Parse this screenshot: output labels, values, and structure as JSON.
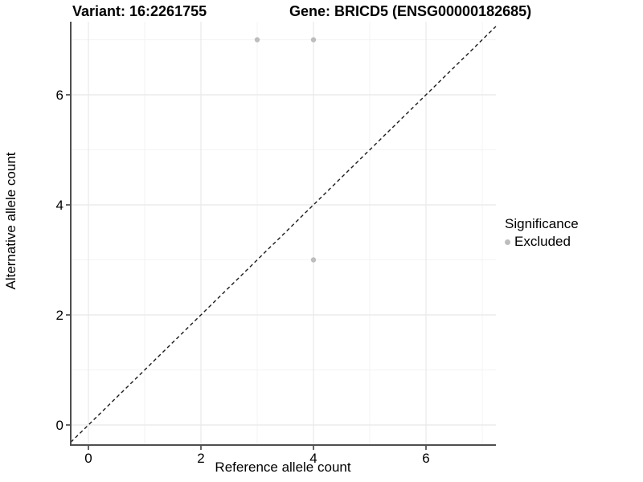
{
  "titles": {
    "variant": "Variant: 16:2261755",
    "gene": "Gene: BRICD5 (ENSG00000182685)"
  },
  "legend": {
    "title": "Significance",
    "items": [
      {
        "label": "Excluded",
        "color": "#bdbdbd"
      }
    ]
  },
  "chart_data": {
    "type": "scatter",
    "title": "Variant: 16:2261755 / Gene: BRICD5 (ENSG00000182685)",
    "xlabel": "Reference allele count",
    "ylabel": "Alternative allele count",
    "series": [
      {
        "name": "Excluded",
        "color": "#bdbdbd",
        "points": [
          {
            "x": 3,
            "y": 7
          },
          {
            "x": 4,
            "y": 7
          },
          {
            "x": 4,
            "y": 3
          }
        ]
      }
    ],
    "reference_line": {
      "type": "identity",
      "slope": 1,
      "intercept": 0,
      "style": "dashed",
      "color": "#1a1a1a"
    },
    "xlim": [
      -0.35,
      7.25
    ],
    "ylim": [
      -0.4,
      7.35
    ],
    "xticks": [
      0,
      2,
      4,
      6
    ],
    "yticks": [
      0,
      2,
      4,
      6
    ],
    "x_minor": [
      1,
      3,
      5,
      7
    ],
    "y_minor": [
      1,
      3,
      5,
      7
    ],
    "grid": true,
    "legend_position": "right"
  },
  "colors": {
    "point": "#bdbdbd",
    "grid_major": "#e8e8e8",
    "grid_minor": "#f3f3f3",
    "axis_line": "#4f4f4f",
    "tick": "#333333",
    "background": "#ffffff"
  }
}
